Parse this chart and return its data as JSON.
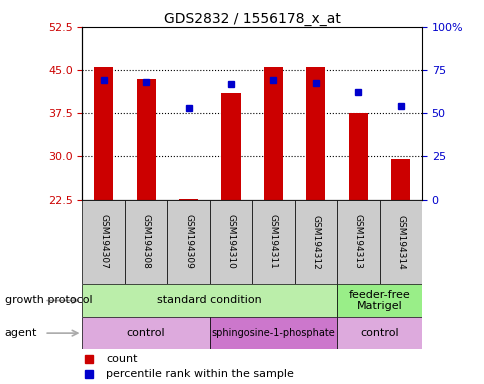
{
  "title": "GDS2832 / 1556178_x_at",
  "samples": [
    "GSM194307",
    "GSM194308",
    "GSM194309",
    "GSM194310",
    "GSM194311",
    "GSM194312",
    "GSM194313",
    "GSM194314"
  ],
  "bar_bottom": 22.5,
  "bar_tops": [
    45.5,
    43.5,
    22.7,
    41.0,
    45.5,
    45.5,
    37.5,
    29.5
  ],
  "blue_y_left": [
    43.2,
    43.0,
    38.5,
    42.5,
    43.3,
    42.7,
    41.2,
    38.7
  ],
  "ylim_left": [
    22.5,
    52.5
  ],
  "ylim_right": [
    0,
    100
  ],
  "yticks_left": [
    22.5,
    30,
    37.5,
    45,
    52.5
  ],
  "yticks_right": [
    0,
    25,
    50,
    75,
    100
  ],
  "bar_color": "#cc0000",
  "blue_color": "#0000cc",
  "tick_label_color_left": "#cc0000",
  "tick_label_color_right": "#0000cc",
  "growth_protocol_groups": [
    {
      "label": "standard condition",
      "start": 0,
      "end": 6,
      "color": "#bbeeaa"
    },
    {
      "label": "feeder-free\nMatrigel",
      "start": 6,
      "end": 8,
      "color": "#99ee88"
    }
  ],
  "agent_groups": [
    {
      "label": "control",
      "start": 0,
      "end": 3,
      "color": "#ddaadd"
    },
    {
      "label": "sphingosine-1-phosphate",
      "start": 3,
      "end": 6,
      "color": "#cc77cc"
    },
    {
      "label": "control",
      "start": 6,
      "end": 8,
      "color": "#ddaadd"
    }
  ],
  "legend_count_color": "#cc0000",
  "legend_pct_color": "#0000cc",
  "label_growth": "growth protocol",
  "label_agent": "agent",
  "arrow_color": "#aaaaaa",
  "sample_box_color": "#cccccc",
  "bar_width": 0.45
}
